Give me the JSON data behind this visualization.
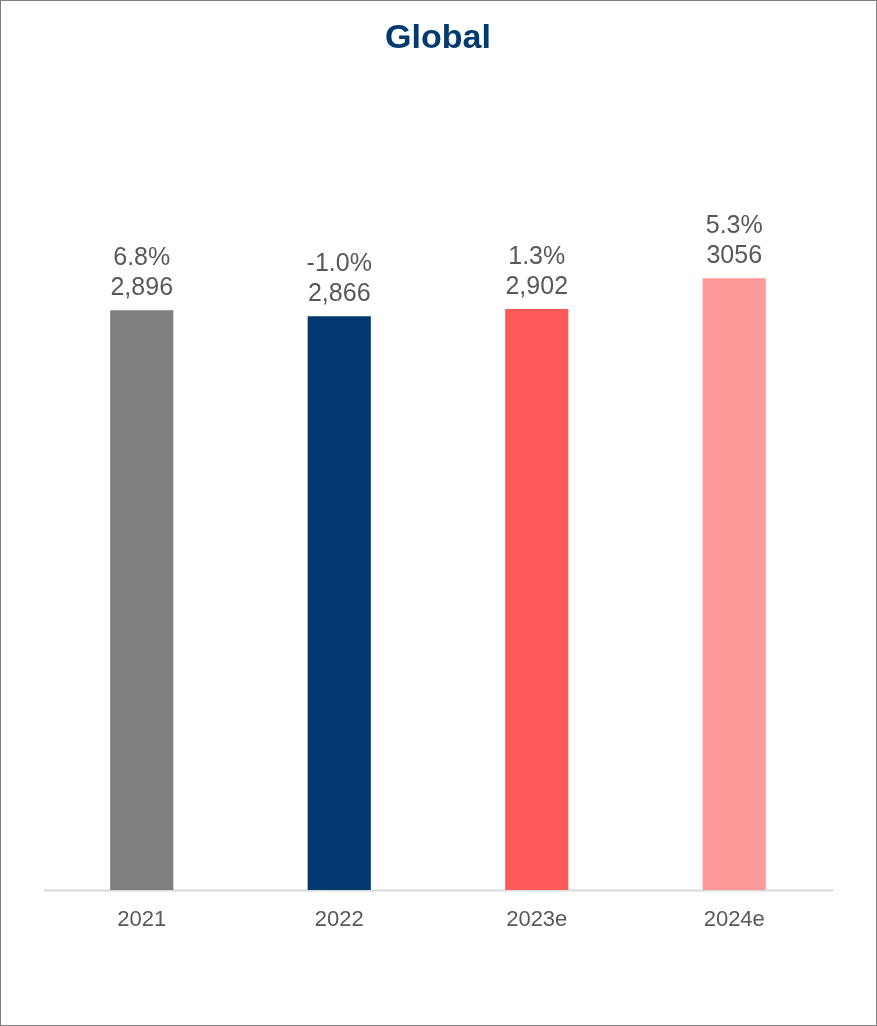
{
  "chart_data": {
    "type": "bar",
    "title": "Global",
    "categories": [
      "2021",
      "2022",
      "2023e",
      "2024e"
    ],
    "values": [
      2896,
      2866,
      2902,
      3056
    ],
    "colors": [
      "#7f7f7f",
      "#003a70",
      "#ff5a5a",
      "#ff9a9a"
    ],
    "value_labels": [
      "6.8%\n2,896",
      "-1.0%\n2,866",
      "1.3%\n2,902",
      "5.3%\n3056"
    ],
    "grid": false
  }
}
